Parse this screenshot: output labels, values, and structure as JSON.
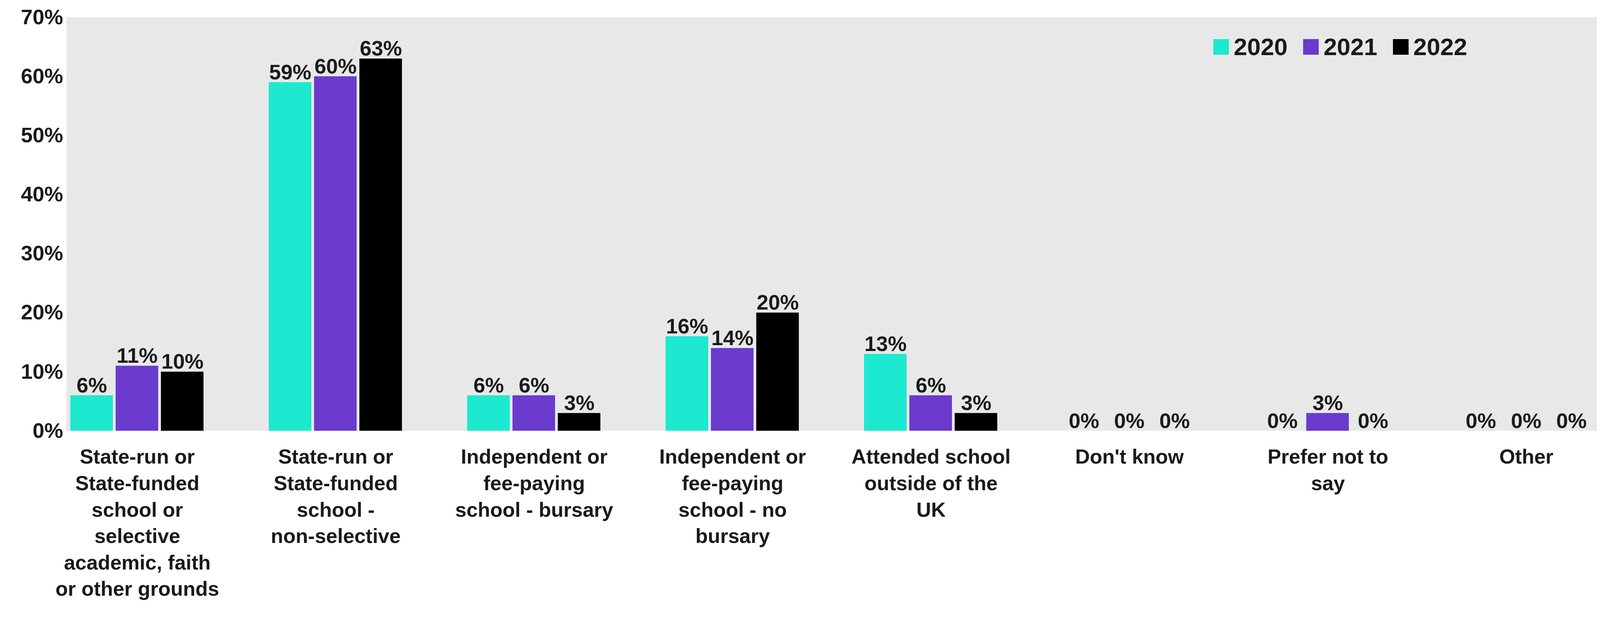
{
  "chart_data": {
    "type": "bar",
    "categories": [
      "State-run or State-funded school or selective academic, faith or other grounds",
      "State-run or State-funded school - non-selective",
      "Independent or fee-paying school - bursary",
      "Independent or fee-paying school - no bursary",
      "Attended school outside of the UK",
      "Don't know",
      "Prefer not to say",
      "Other"
    ],
    "series": [
      {
        "name": "2020",
        "color": "#1de9d0",
        "values": [
          6,
          59,
          6,
          16,
          13,
          0,
          0,
          0
        ],
        "value_labels": [
          "6%",
          "59%",
          "6%",
          "16%",
          "13%",
          "0%",
          "0%",
          "0%"
        ]
      },
      {
        "name": "2021",
        "color": "#6a3bcc",
        "values": [
          11,
          60,
          6,
          14,
          6,
          0,
          3,
          0
        ],
        "value_labels": [
          "11%",
          "60%",
          "6%",
          "14%",
          "6%",
          "0%",
          "3%",
          "0%"
        ]
      },
      {
        "name": "2022",
        "color": "#000000",
        "values": [
          10,
          63,
          3,
          20,
          3,
          0,
          0,
          0
        ],
        "value_labels": [
          "10%",
          "63%",
          "3%",
          "20%",
          "3%",
          "0%",
          "0%",
          "0%"
        ]
      }
    ],
    "ylim": [
      0,
      70
    ],
    "yticks": [
      {
        "value": 0,
        "label": "0%"
      },
      {
        "value": 10,
        "label": "10%"
      },
      {
        "value": 20,
        "label": "20%"
      },
      {
        "value": 30,
        "label": "30%"
      },
      {
        "value": 40,
        "label": "40%"
      },
      {
        "value": 50,
        "label": "50%"
      },
      {
        "value": 60,
        "label": "60%"
      },
      {
        "value": 70,
        "label": "70%"
      }
    ],
    "legend": "top-right",
    "data_labels": true,
    "grid": false
  }
}
